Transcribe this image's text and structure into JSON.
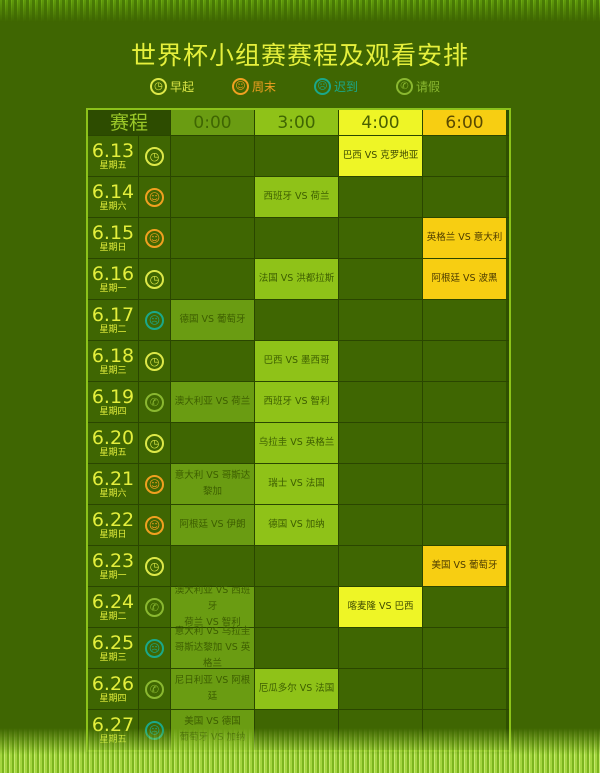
{
  "title": "世界杯小组赛赛程及观看安排",
  "legend": [
    {
      "icon": "clock",
      "label": "早起",
      "color": "#dde848"
    },
    {
      "icon": "smile",
      "label": "周末",
      "color": "#f0a020"
    },
    {
      "icon": "sad",
      "label": "迟到",
      "color": "#1aa88a"
    },
    {
      "icon": "phone",
      "label": "请假",
      "color": "#8ab830"
    }
  ],
  "table": {
    "header": [
      "赛程",
      "0:00",
      "3:00",
      "4:00",
      "6:00"
    ],
    "rows": [
      {
        "date": "6.13",
        "weekday": "星期五",
        "icon": "clock",
        "matches": [
          null,
          null,
          "巴西 VS 克罗地亚",
          null
        ]
      },
      {
        "date": "6.14",
        "weekday": "星期六",
        "icon": "smile",
        "matches": [
          null,
          "西班牙 VS 荷兰",
          null,
          null
        ]
      },
      {
        "date": "6.15",
        "weekday": "星期日",
        "icon": "smile",
        "matches": [
          null,
          null,
          null,
          "英格兰 VS 意大利"
        ]
      },
      {
        "date": "6.16",
        "weekday": "星期一",
        "icon": "clock",
        "matches": [
          null,
          "法国 VS 洪都拉斯",
          null,
          "阿根廷 VS 波黑"
        ]
      },
      {
        "date": "6.17",
        "weekday": "星期二",
        "icon": "sad",
        "matches": [
          "德国 VS 葡萄牙",
          null,
          null,
          null
        ]
      },
      {
        "date": "6.18",
        "weekday": "星期三",
        "icon": "clock",
        "matches": [
          null,
          "巴西 VS 墨西哥",
          null,
          null
        ]
      },
      {
        "date": "6.19",
        "weekday": "星期四",
        "icon": "phone",
        "matches": [
          "澳大利亚 VS 荷兰",
          "西班牙 VS 智利",
          null,
          null
        ]
      },
      {
        "date": "6.20",
        "weekday": "星期五",
        "icon": "clock",
        "matches": [
          null,
          "乌拉圭 VS 英格兰",
          null,
          null
        ]
      },
      {
        "date": "6.21",
        "weekday": "星期六",
        "icon": "smile",
        "matches": [
          "意大利 VS 哥斯达黎加",
          "瑞士 VS 法国",
          null,
          null
        ]
      },
      {
        "date": "6.22",
        "weekday": "星期日",
        "icon": "smile",
        "matches": [
          "阿根廷 VS 伊朗",
          "德国 VS 加纳",
          null,
          null
        ]
      },
      {
        "date": "6.23",
        "weekday": "星期一",
        "icon": "clock",
        "matches": [
          null,
          null,
          null,
          "美国 VS 葡萄牙"
        ]
      },
      {
        "date": "6.24",
        "weekday": "星期二",
        "icon": "phone",
        "matches": [
          "澳大利亚 VS 西班牙\n荷兰 VS 智利",
          null,
          "喀麦隆 VS 巴西",
          null
        ]
      },
      {
        "date": "6.25",
        "weekday": "星期三",
        "icon": "sad",
        "matches": [
          "意大利 VS 乌拉圭\n哥斯达黎加 VS 英格兰",
          null,
          null,
          null
        ]
      },
      {
        "date": "6.26",
        "weekday": "星期四",
        "icon": "phone",
        "matches": [
          "尼日利亚 VS 阿根廷",
          "厄瓜多尔 VS 法国",
          null,
          null
        ]
      },
      {
        "date": "6.27",
        "weekday": "星期五",
        "icon": "sad",
        "matches": [
          "美国 VS 德国\n葡萄牙 VS 加纳",
          null,
          null,
          null
        ]
      }
    ]
  }
}
